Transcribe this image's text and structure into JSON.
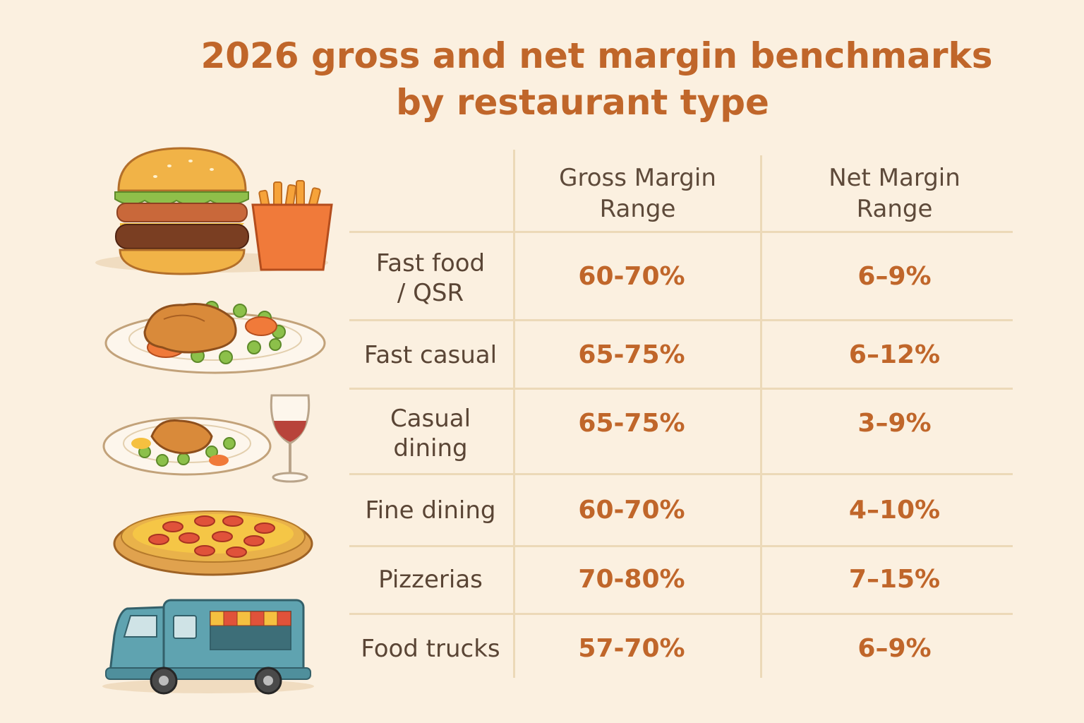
{
  "title": {
    "line1": "2026 gross and net margin benchmarks",
    "line2": "by restaurant type"
  },
  "columns": {
    "gross": "Gross Margin Range",
    "gross_line1": "Gross Margin",
    "gross_line2": "Range",
    "net": "Net Margin Range",
    "net_line1": "Net Margin",
    "net_line2": "Range"
  },
  "rows": [
    {
      "label": "Fast food / QSR",
      "label_line1": "Fast food",
      "label_line2": "/ QSR",
      "gross": "60-70%",
      "net": "6–9%",
      "icon": "burger-fries-icon"
    },
    {
      "label": "Fast casual",
      "label_line1": "Fast casual",
      "label_line2": "",
      "gross": "65-75%",
      "net": "6–12%",
      "icon": "chicken-plate-icon"
    },
    {
      "label": "Casual dining",
      "label_line1": "Casual",
      "label_line2": "dining",
      "gross": "65-75%",
      "net": "3–9%",
      "icon": "plate-wine-icon"
    },
    {
      "label": "Fine dining",
      "label_line1": "Fine dining",
      "label_line2": "",
      "gross": "60-70%",
      "net": "4–10%",
      "icon": "pizza-icon"
    },
    {
      "label": "Pizzerias",
      "label_line1": "Pizzerias",
      "label_line2": "",
      "gross": "70-80%",
      "net": "7–15%",
      "icon": "pizza-icon"
    },
    {
      "label": "Food trucks",
      "label_line1": "Food trucks",
      "label_line2": "",
      "gross": "57-70%",
      "net": "6–9%",
      "icon": "food-truck-icon"
    }
  ],
  "chart_data": {
    "type": "table",
    "title": "2026 gross and net margin benchmarks by restaurant type",
    "columns": [
      "",
      "Gross Margin Range",
      "Net Margin Range"
    ],
    "categories": [
      "Fast food / QSR",
      "Fast casual",
      "Casual dining",
      "Fine dining",
      "Pizzerias",
      "Food trucks"
    ],
    "series": [
      {
        "name": "Gross Margin Range",
        "values": [
          [
            60,
            70
          ],
          [
            65,
            75
          ],
          [
            65,
            75
          ],
          [
            60,
            70
          ],
          [
            70,
            80
          ],
          [
            57,
            70
          ]
        ]
      },
      {
        "name": "Net Margin Range",
        "values": [
          [
            6,
            9
          ],
          [
            6,
            12
          ],
          [
            3,
            9
          ],
          [
            4,
            10
          ],
          [
            7,
            15
          ],
          [
            6,
            9
          ]
        ]
      }
    ],
    "unit": "%"
  },
  "colors": {
    "background": "#fbf0e0",
    "accent": "#c0662a",
    "text": "#5a4535",
    "grid": "#ecd9b8"
  }
}
